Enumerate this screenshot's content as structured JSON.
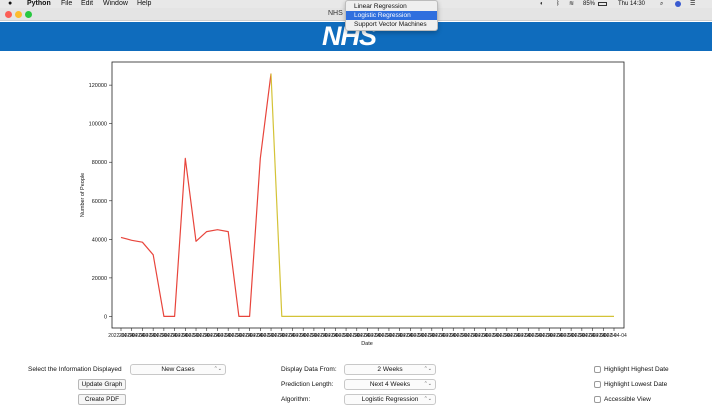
{
  "menubar": {
    "apple_icon": "",
    "items": [
      "Python",
      "File",
      "Edit",
      "Window",
      "Help"
    ],
    "battery": "85%",
    "clock": "Thu 14:30"
  },
  "window": {
    "title": "NHS"
  },
  "banner": {
    "logo": "NHS",
    "color": "#0f6cbd"
  },
  "algorithm_popup": {
    "options": [
      "Linear Regression",
      "Logistic Regression",
      "Support Vector Machines"
    ],
    "selected_index": 1
  },
  "chart_data": {
    "type": "line",
    "xlabel": "Date",
    "ylabel": "Number of People",
    "ylim": [
      -6000,
      132000
    ],
    "yticks": [
      0,
      20000,
      40000,
      60000,
      80000,
      100000,
      120000
    ],
    "ytick_labels": [
      "0",
      "20000",
      "40000",
      "60000",
      "80000",
      "100000",
      "120000"
    ],
    "x_last_tick_label": "2022-04-04",
    "series": [
      {
        "color": "#e8453c",
        "x": [
          0,
          1,
          2,
          3,
          4,
          5,
          6,
          7,
          8,
          9,
          10,
          11,
          12,
          13,
          14
        ],
        "values": [
          41000,
          39500,
          38500,
          32000,
          0,
          0,
          82000,
          39000,
          44000,
          45000,
          44000,
          0,
          0,
          82000,
          126000
        ]
      },
      {
        "color": "#d4c337",
        "x": [
          14,
          15,
          46
        ],
        "values": [
          126000,
          0,
          0
        ]
      }
    ],
    "x_count": 47,
    "grid": false
  },
  "controls": {
    "info_label": "Select the Information Displayed",
    "info_value": "New Cases",
    "update_button": "Update Graph",
    "pdf_button": "Create PDF",
    "display_from_label": "Display Data From:",
    "display_from_value": "2 Weeks",
    "prediction_label": "Prediction Length:",
    "prediction_value": "Next 4 Weeks",
    "algorithm_label": "Algorithm:",
    "algorithm_value": "Logistic Regression",
    "checkboxes": [
      "Highlight Highest Date",
      "Highlight Lowest Date",
      "Accessible View"
    ],
    "select_arrow": "⌃⌄"
  }
}
